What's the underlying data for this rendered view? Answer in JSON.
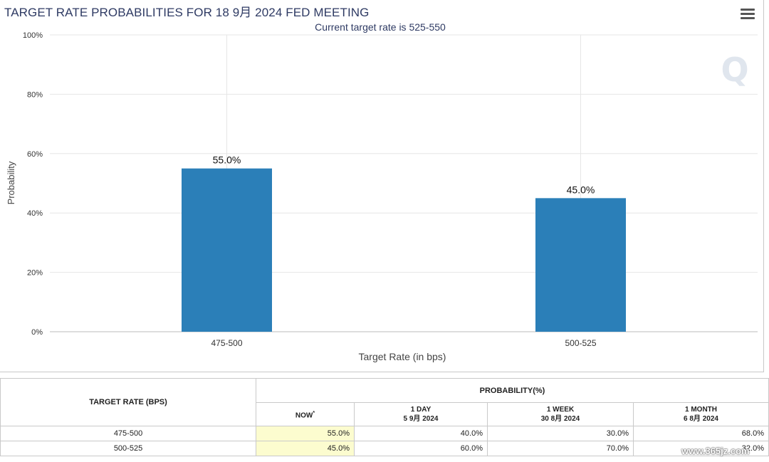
{
  "chart_data": {
    "type": "bar",
    "title": "TARGET RATE PROBABILITIES FOR 18 9月 2024 FED MEETING",
    "subtitle": "Current target rate is 525-550",
    "categories": [
      "475-500",
      "500-525"
    ],
    "values": [
      55.0,
      45.0
    ],
    "data_labels": [
      "55.0%",
      "45.0%"
    ],
    "xlabel": "Target Rate (in bps)",
    "ylabel": "Probability",
    "ylim": [
      0,
      100
    ],
    "yticks": [
      "0%",
      "20%",
      "40%",
      "60%",
      "80%",
      "100%"
    ],
    "grid": true,
    "bar_color": "#2b7fb8"
  },
  "table": {
    "header_rate": "TARGET RATE (BPS)",
    "header_prob": "PROBABILITY(%)",
    "col_now": "NOW",
    "col_now_mark": "*",
    "col_1day": "1 DAY",
    "col_1day_date": "5 9月 2024",
    "col_1week": "1 WEEK",
    "col_1week_date": "30 8月 2024",
    "col_1month": "1 MONTH",
    "col_1month_date": "6 8月 2024",
    "rows": [
      {
        "rate": "475-500",
        "now": "55.0%",
        "day": "40.0%",
        "week": "30.0%",
        "month": "68.0%"
      },
      {
        "rate": "500-525",
        "now": "45.0%",
        "day": "60.0%",
        "week": "70.0%",
        "month": "32.0%"
      }
    ]
  },
  "watermark": "www.365jz.com",
  "colors": {
    "title": "#2e3a63",
    "bar": "#2b7fb8",
    "now_highlight": "#fcfccf"
  }
}
